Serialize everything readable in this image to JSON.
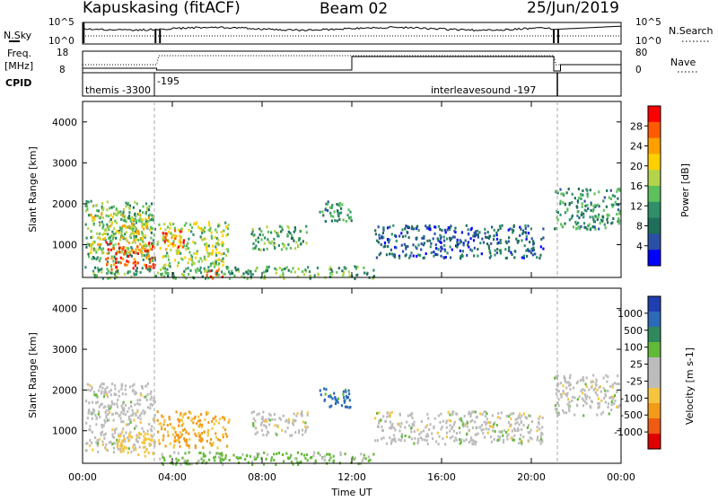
{
  "header": {
    "station": "Kapuskasing (fitACF)",
    "beam": "Beam 02",
    "date": "25/Jun/2019"
  },
  "side_labels": {
    "nsky": "N.Sky",
    "freq_line1": "Freq.",
    "freq_line2": "[MHz]",
    "cpid": "CPID",
    "nsearch": "N.Search",
    "nave": "Nave"
  },
  "strip_ticks": {
    "nsky_left": [
      "10^5",
      "10^0"
    ],
    "nsky_right": [
      "10^5",
      "10^0"
    ],
    "freq_left": [
      "18",
      "8"
    ],
    "nave_right": [
      "80",
      "0"
    ]
  },
  "cpid": {
    "left_label": "themis -3300",
    "mid_label": "-195",
    "right_label": "interleavesound -197"
  },
  "panels": {
    "power_ylabel": "Slant Range [km]",
    "velocity_ylabel": "Slant Range [km]",
    "y_ticks": [
      "4000",
      "3000",
      "2000",
      "1000"
    ],
    "x_ticks": [
      "00:00",
      "04:00",
      "08:00",
      "12:00",
      "16:00",
      "20:00",
      "00:00"
    ],
    "xlabel": "Time UT"
  },
  "colorbars": {
    "power": {
      "label": "Power [dB]",
      "ticks": [
        "28",
        "24",
        "20",
        "16",
        "12",
        "8",
        "4"
      ],
      "colors": [
        "#ff0000",
        "#ff5a00",
        "#ffa000",
        "#ffd000",
        "#b4d34a",
        "#5cc05c",
        "#2f8f6a",
        "#1e6e5a",
        "#2a4fa6",
        "#0000ff"
      ]
    },
    "velocity": {
      "label": "Velocity [m s-1]",
      "ticks": [
        "1000",
        "500",
        "100",
        "25",
        "-25",
        "-100",
        "-500",
        "-1000"
      ],
      "colors": [
        "#1f3fb0",
        "#2c6ab8",
        "#2e8a5c",
        "#63b93a",
        "#bcbcbc",
        "#bcbcbc",
        "#f5c542",
        "#f29a1a",
        "#ef5a14",
        "#e00000"
      ]
    }
  },
  "chart_data": [
    {
      "type": "heatmap",
      "title": "Power",
      "xlabel": "Time UT",
      "ylabel": "Slant Range [km]",
      "x_range_hours": [
        0,
        24
      ],
      "ylim_km": [
        200,
        4500
      ],
      "colorbar_label": "Power [dB]",
      "color_range_db": [
        0,
        30
      ],
      "regions": [
        {
          "t0": 0.1,
          "t1": 3.2,
          "r0": 600,
          "r1": 2100,
          "value": 12
        },
        {
          "t0": 0.3,
          "t1": 3.0,
          "r0": 800,
          "r1": 1800,
          "value": 18
        },
        {
          "t0": 1.0,
          "t1": 3.2,
          "r0": 400,
          "r1": 1100,
          "value": 26
        },
        {
          "t0": 3.3,
          "t1": 6.5,
          "r0": 500,
          "r1": 1600,
          "value": 16
        },
        {
          "t0": 3.5,
          "t1": 4.5,
          "r0": 900,
          "r1": 1400,
          "value": 24
        },
        {
          "t0": 5.5,
          "t1": 6.3,
          "r0": 200,
          "r1": 500,
          "value": 25
        },
        {
          "t0": 0.0,
          "t1": 13.0,
          "r0": 200,
          "r1": 500,
          "value": 12
        },
        {
          "t0": 7.5,
          "t1": 10.0,
          "r0": 900,
          "r1": 1500,
          "value": 12
        },
        {
          "t0": 10.5,
          "t1": 12.0,
          "r0": 1600,
          "r1": 2100,
          "value": 10
        },
        {
          "t0": 13.0,
          "t1": 20.5,
          "r0": 700,
          "r1": 1500,
          "value": 6
        },
        {
          "t0": 21.0,
          "t1": 23.9,
          "r0": 1400,
          "r1": 2400,
          "value": 10
        }
      ]
    },
    {
      "type": "heatmap",
      "title": "Velocity",
      "xlabel": "Time UT",
      "ylabel": "Slant Range [km]",
      "x_range_hours": [
        0,
        24
      ],
      "ylim_km": [
        200,
        4500
      ],
      "colorbar_label": "Velocity [m s-1]",
      "color_range_ms": [
        -1000,
        1000
      ],
      "regions": [
        {
          "t0": 0.1,
          "t1": 3.2,
          "r0": 500,
          "r1": 2200,
          "value": 0
        },
        {
          "t0": 1.5,
          "t1": 3.2,
          "r0": 400,
          "r1": 1000,
          "value": -60
        },
        {
          "t0": 3.3,
          "t1": 6.5,
          "r0": 600,
          "r1": 1500,
          "value": -110
        },
        {
          "t0": 3.3,
          "t1": 13.0,
          "r0": 200,
          "r1": 500,
          "value": 40
        },
        {
          "t0": 7.5,
          "t1": 10.0,
          "r0": 900,
          "r1": 1500,
          "value": 0
        },
        {
          "t0": 10.5,
          "t1": 12.0,
          "r0": 1600,
          "r1": 2100,
          "value": 120
        },
        {
          "t0": 13.0,
          "t1": 20.5,
          "r0": 700,
          "r1": 1500,
          "value": 0
        },
        {
          "t0": 21.0,
          "t1": 23.9,
          "r0": 1400,
          "r1": 2400,
          "value": 0
        }
      ]
    }
  ]
}
